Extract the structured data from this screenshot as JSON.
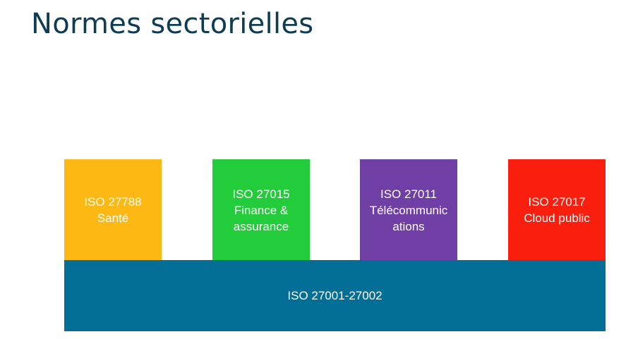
{
  "title": "Normes sectorielles",
  "boxes": [
    {
      "lines": [
        "ISO 27788",
        "Santé"
      ],
      "color": "#fdb813"
    },
    {
      "lines": [
        "ISO 27015",
        "Finance &",
        "assurance"
      ],
      "color": "#22cc3b"
    },
    {
      "lines": [
        "ISO 27011",
        "Télécommunic",
        "ations"
      ],
      "color": "#6f3fa5"
    },
    {
      "lines": [
        "ISO 27017",
        "Cloud public"
      ],
      "color": "#fa1e0e"
    }
  ],
  "base": {
    "label": "ISO 27001-27002",
    "color": "#036e96"
  }
}
